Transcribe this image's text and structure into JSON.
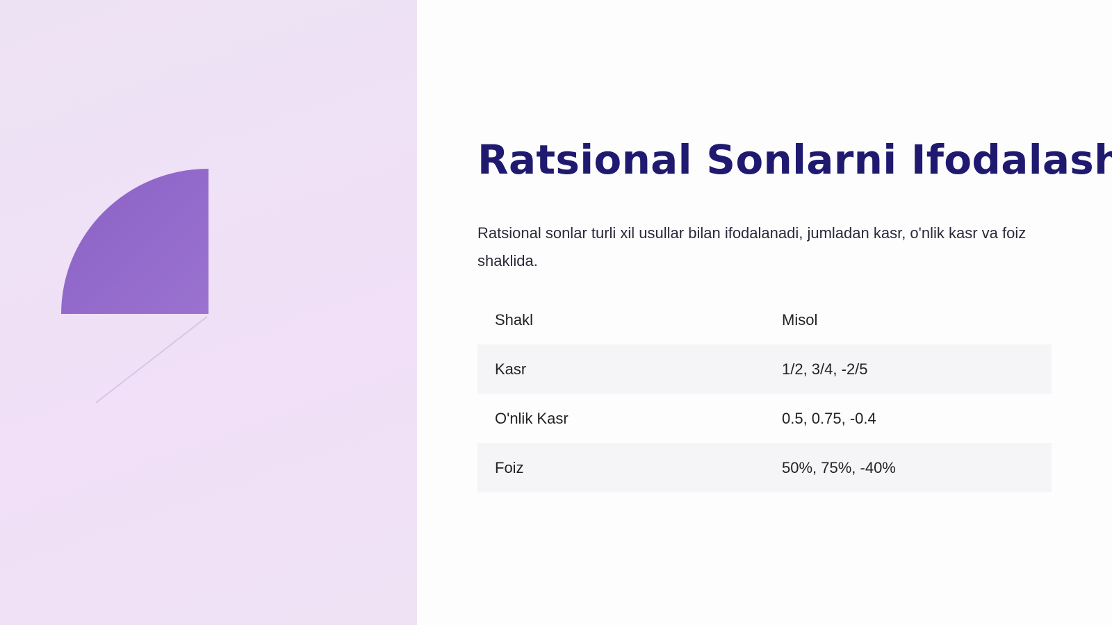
{
  "header": {
    "title": "Ratsional Sonlarni Ifodalash"
  },
  "paragraph": "Ratsional sonlar turli xil usullar bilan ifodalanadi, jumladan kasr, o'nlik kasr va foiz shaklida.",
  "table": {
    "header": [
      "Shakl",
      "Misol"
    ],
    "rows": [
      [
        "Kasr",
        "1/2, 3/4, -2/5"
      ],
      [
        "O'nlik Kasr",
        "0.5, 0.75, -0.4"
      ],
      [
        "Foiz",
        "50%, 75%, -40%"
      ]
    ]
  }
}
